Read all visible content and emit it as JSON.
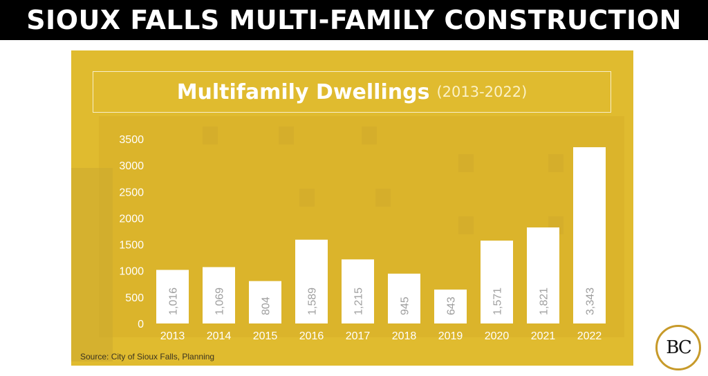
{
  "banner": {
    "title": "SIOUX FALLS MULTI-FAMILY CONSTRUCTION"
  },
  "colors": {
    "panel": "#e0bb2f",
    "bar": "#ffffff",
    "value_label": "#9e9e9e",
    "axis_text": "#ffffff"
  },
  "chart_data": {
    "type": "bar",
    "title": "Multifamily Dwellings",
    "subtitle": "(2013-2022)",
    "categories": [
      "2013",
      "2014",
      "2015",
      "2016",
      "2017",
      "2018",
      "2019",
      "2020",
      "2021",
      "2022"
    ],
    "values": [
      1016,
      1069,
      804,
      1589,
      1215,
      945,
      643,
      1571,
      1821,
      3343
    ],
    "value_labels": [
      "1,016",
      "1,069",
      "804",
      "1,589",
      "1,215",
      "945",
      "643",
      "1,571",
      "1,821",
      "3,343"
    ],
    "yticks": [
      "0",
      "500",
      "1000",
      "1500",
      "2000",
      "2500",
      "3000",
      "3500"
    ],
    "ylim": [
      0,
      3500
    ],
    "xlabel": "",
    "ylabel": "",
    "grid": false,
    "legend": "none"
  },
  "source": "Source:  City of Sioux Falls, Planning",
  "logo": {
    "text": "BC"
  }
}
